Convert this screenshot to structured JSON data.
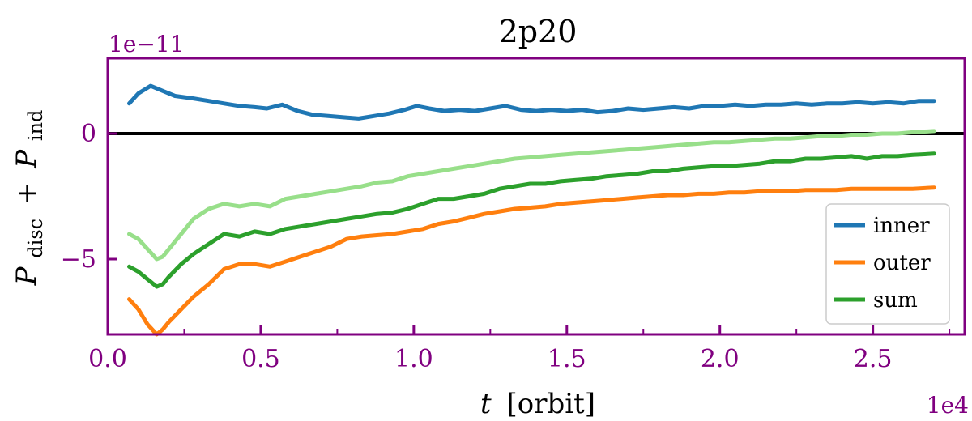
{
  "chart_data": {
    "type": "line",
    "title": "2p20",
    "xlabel_var": "t",
    "xlabel_unit": "[orbit]",
    "ylabel": {
      "p1": "P",
      "sub1": "disc",
      "plus": "+",
      "p2": "P",
      "sub2": "ind"
    },
    "x_offset_text": "1e4",
    "y_offset_text": "1e−11",
    "xlim": [
      0.0,
      2.8
    ],
    "ylim": [
      -8.0,
      3.0
    ],
    "x_ticks": [
      0.0,
      0.5,
      1.0,
      1.5,
      2.0,
      2.5
    ],
    "x_tick_labels": [
      "0.0",
      "0.5",
      "1.0",
      "1.5",
      "2.0",
      "2.5"
    ],
    "y_ticks": [
      0,
      -5
    ],
    "y_tick_labels": [
      "0",
      "−5"
    ],
    "x_minor_ticks": [
      0.25,
      0.75,
      1.25,
      1.75,
      2.25,
      2.75
    ],
    "zero_line": 0,
    "legend_position": "lower-right",
    "series": [
      {
        "name": "inner",
        "color": "#1f77b4",
        "in_legend": true,
        "x": [
          0.07,
          0.1,
          0.14,
          0.18,
          0.22,
          0.28,
          0.33,
          0.38,
          0.43,
          0.48,
          0.52,
          0.57,
          0.62,
          0.67,
          0.72,
          0.77,
          0.82,
          0.87,
          0.92,
          0.97,
          1.01,
          1.05,
          1.1,
          1.15,
          1.2,
          1.25,
          1.3,
          1.35,
          1.4,
          1.45,
          1.5,
          1.55,
          1.6,
          1.65,
          1.7,
          1.75,
          1.8,
          1.85,
          1.9,
          1.95,
          2.0,
          2.05,
          2.1,
          2.15,
          2.2,
          2.25,
          2.3,
          2.35,
          2.4,
          2.45,
          2.5,
          2.55,
          2.6,
          2.65,
          2.7
        ],
        "y": [
          1.2,
          1.6,
          1.9,
          1.7,
          1.5,
          1.4,
          1.3,
          1.2,
          1.1,
          1.05,
          1.0,
          1.15,
          0.9,
          0.75,
          0.7,
          0.65,
          0.6,
          0.7,
          0.8,
          0.95,
          1.1,
          1.0,
          0.9,
          0.95,
          0.9,
          1.0,
          1.1,
          0.95,
          0.9,
          0.95,
          0.9,
          0.95,
          0.85,
          0.9,
          1.0,
          0.95,
          1.0,
          1.05,
          1.0,
          1.1,
          1.1,
          1.15,
          1.1,
          1.15,
          1.15,
          1.2,
          1.15,
          1.2,
          1.2,
          1.25,
          1.2,
          1.25,
          1.2,
          1.3,
          1.3
        ]
      },
      {
        "name": "outer",
        "color": "#ff7f0e",
        "in_legend": true,
        "x": [
          0.07,
          0.1,
          0.13,
          0.16,
          0.18,
          0.2,
          0.24,
          0.28,
          0.33,
          0.38,
          0.43,
          0.48,
          0.53,
          0.58,
          0.63,
          0.68,
          0.73,
          0.78,
          0.83,
          0.88,
          0.93,
          0.98,
          1.03,
          1.08,
          1.13,
          1.18,
          1.23,
          1.28,
          1.33,
          1.38,
          1.43,
          1.48,
          1.53,
          1.58,
          1.63,
          1.68,
          1.73,
          1.78,
          1.83,
          1.88,
          1.93,
          1.98,
          2.03,
          2.08,
          2.13,
          2.18,
          2.23,
          2.28,
          2.33,
          2.38,
          2.43,
          2.48,
          2.53,
          2.58,
          2.63,
          2.7
        ],
        "y": [
          -6.6,
          -7.0,
          -7.6,
          -8.0,
          -7.8,
          -7.5,
          -7.0,
          -6.5,
          -6.0,
          -5.4,
          -5.2,
          -5.2,
          -5.3,
          -5.1,
          -4.9,
          -4.7,
          -4.5,
          -4.2,
          -4.1,
          -4.05,
          -4.0,
          -3.9,
          -3.8,
          -3.6,
          -3.5,
          -3.35,
          -3.2,
          -3.1,
          -3.0,
          -2.95,
          -2.9,
          -2.8,
          -2.75,
          -2.7,
          -2.65,
          -2.6,
          -2.55,
          -2.5,
          -2.45,
          -2.45,
          -2.4,
          -2.4,
          -2.35,
          -2.35,
          -2.3,
          -2.3,
          -2.3,
          -2.25,
          -2.25,
          -2.25,
          -2.2,
          -2.2,
          -2.2,
          -2.2,
          -2.2,
          -2.15
        ]
      },
      {
        "name": "sum",
        "color": "#2ca02c",
        "in_legend": true,
        "x": [
          0.07,
          0.1,
          0.13,
          0.16,
          0.18,
          0.2,
          0.24,
          0.28,
          0.33,
          0.38,
          0.43,
          0.48,
          0.53,
          0.58,
          0.63,
          0.68,
          0.73,
          0.78,
          0.83,
          0.88,
          0.93,
          0.98,
          1.03,
          1.08,
          1.13,
          1.18,
          1.23,
          1.28,
          1.33,
          1.38,
          1.43,
          1.48,
          1.53,
          1.58,
          1.63,
          1.68,
          1.73,
          1.78,
          1.83,
          1.88,
          1.93,
          1.98,
          2.03,
          2.08,
          2.13,
          2.18,
          2.23,
          2.28,
          2.33,
          2.38,
          2.43,
          2.48,
          2.53,
          2.58,
          2.63,
          2.7
        ],
        "y": [
          -5.3,
          -5.5,
          -5.8,
          -6.1,
          -6.0,
          -5.7,
          -5.2,
          -4.8,
          -4.4,
          -4.0,
          -4.1,
          -3.9,
          -4.0,
          -3.8,
          -3.7,
          -3.6,
          -3.5,
          -3.4,
          -3.3,
          -3.2,
          -3.15,
          -3.0,
          -2.8,
          -2.6,
          -2.6,
          -2.5,
          -2.4,
          -2.2,
          -2.1,
          -2.0,
          -2.0,
          -1.9,
          -1.85,
          -1.8,
          -1.7,
          -1.65,
          -1.6,
          -1.5,
          -1.5,
          -1.4,
          -1.35,
          -1.3,
          -1.3,
          -1.25,
          -1.2,
          -1.1,
          -1.1,
          -1.0,
          -1.0,
          -0.95,
          -0.9,
          -1.0,
          -0.9,
          -0.9,
          -0.85,
          -0.8
        ]
      },
      {
        "name": "",
        "color": "#98df8a",
        "in_legend": false,
        "x": [
          0.07,
          0.1,
          0.13,
          0.16,
          0.18,
          0.2,
          0.24,
          0.28,
          0.33,
          0.38,
          0.43,
          0.48,
          0.53,
          0.58,
          0.63,
          0.68,
          0.73,
          0.78,
          0.83,
          0.88,
          0.93,
          0.98,
          1.03,
          1.08,
          1.13,
          1.18,
          1.23,
          1.28,
          1.33,
          1.38,
          1.43,
          1.48,
          1.53,
          1.58,
          1.63,
          1.68,
          1.73,
          1.78,
          1.83,
          1.88,
          1.93,
          1.98,
          2.03,
          2.08,
          2.13,
          2.18,
          2.23,
          2.28,
          2.33,
          2.38,
          2.43,
          2.48,
          2.53,
          2.58,
          2.63,
          2.7
        ],
        "y": [
          -4.0,
          -4.2,
          -4.6,
          -5.0,
          -4.9,
          -4.6,
          -4.0,
          -3.4,
          -3.0,
          -2.8,
          -2.9,
          -2.8,
          -2.9,
          -2.6,
          -2.5,
          -2.4,
          -2.3,
          -2.2,
          -2.1,
          -1.95,
          -1.9,
          -1.7,
          -1.6,
          -1.5,
          -1.4,
          -1.3,
          -1.2,
          -1.1,
          -1.0,
          -0.95,
          -0.9,
          -0.85,
          -0.8,
          -0.75,
          -0.7,
          -0.65,
          -0.6,
          -0.55,
          -0.5,
          -0.45,
          -0.4,
          -0.35,
          -0.35,
          -0.3,
          -0.25,
          -0.2,
          -0.2,
          -0.15,
          -0.1,
          -0.1,
          -0.05,
          -0.05,
          0.0,
          0.0,
          0.05,
          0.1
        ]
      }
    ],
    "colors": {
      "axis": "#800080",
      "zero_line": "#000000",
      "text": "#000000",
      "legend_border": "#cccccc"
    }
  }
}
